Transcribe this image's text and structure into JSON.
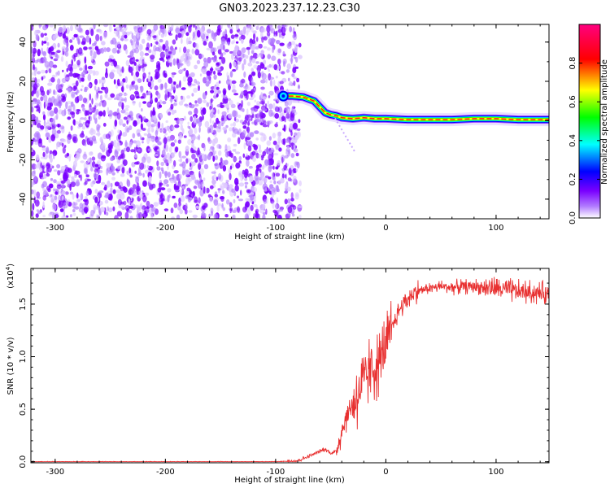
{
  "page_title": "GN03.2023.237.12.23.C30",
  "chart_data": [
    {
      "type": "heatmap",
      "xlabel": "Height of straight line (km)",
      "ylabel": "Frequency (Hz)",
      "xlim": [
        -322,
        148
      ],
      "ylim": [
        -50,
        49
      ],
      "x_ticks": [
        -300,
        -200,
        -100,
        0,
        100
      ],
      "y_ticks": [
        -40,
        -20,
        0,
        20,
        40
      ],
      "colorbar": {
        "label": "Normalized spectral amplitude",
        "range": [
          0,
          1
        ],
        "ticks": [
          0.0,
          0.2,
          0.4,
          0.6,
          0.8
        ],
        "tick_labels": [
          "0.0",
          "0.2",
          "0.4",
          "0.6",
          "0.8"
        ],
        "colors": [
          "#ffffff",
          "#7a00ff",
          "#0000ff",
          "#00ffff",
          "#00ff00",
          "#ffff00",
          "#ff0000",
          "#ff007f"
        ]
      },
      "noise_region_x": [
        -322,
        -82
      ],
      "noise_color": "#7a00ff",
      "signal_track": {
        "x": [
          -95,
          -85,
          -75,
          -65,
          -60,
          -55,
          -50,
          -45,
          -40,
          -30,
          -20,
          -10,
          0,
          20,
          40,
          60,
          80,
          100,
          120,
          148
        ],
        "y": [
          12.5,
          12.5,
          12,
          10,
          7,
          4,
          3,
          2.5,
          1.5,
          1,
          1.5,
          1,
          1,
          0.5,
          0.5,
          0.5,
          1,
          1,
          0.5,
          0.5
        ]
      }
    },
    {
      "type": "line",
      "xlabel": "Height of straight line (km)",
      "ylabel": "SNR (10 * v/v)",
      "multiplier": "(x10",
      "multiplier_exp": "4",
      "multiplier_close": ")",
      "xlim": [
        -322,
        148
      ],
      "ylim": [
        -0.01,
        1.84
      ],
      "x_ticks": [
        -300,
        -200,
        -100,
        0,
        100
      ],
      "y_ticks": [
        0.0,
        0.5,
        1.0,
        1.5
      ],
      "y_tick_labels": [
        "0.0",
        "0.5",
        "1.0",
        "1.5"
      ],
      "series": [
        {
          "color": "#e83030",
          "x": [
            -322,
            -100,
            -80,
            -70,
            -60,
            -55,
            -50,
            -45,
            -40,
            -35,
            -30,
            -25,
            -20,
            -15,
            -10,
            -5,
            0,
            5,
            10,
            15,
            20,
            25,
            30,
            40,
            50,
            60,
            80,
            100,
            120,
            148
          ],
          "y": [
            0.0,
            0.0,
            0.01,
            0.05,
            0.1,
            0.12,
            0.08,
            0.1,
            0.3,
            0.45,
            0.55,
            0.65,
            0.75,
            0.85,
            0.9,
            0.95,
            1.1,
            1.25,
            1.4,
            1.5,
            1.55,
            1.6,
            1.63,
            1.65,
            1.67,
            1.66,
            1.67,
            1.65,
            1.62,
            1.6
          ]
        }
      ]
    }
  ]
}
